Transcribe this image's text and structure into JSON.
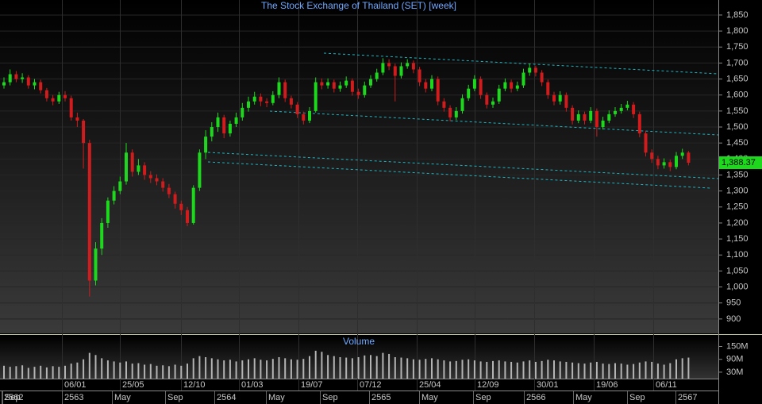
{
  "chart_data": {
    "type": "candlestick",
    "title": "The Stock Exchange of Thailand (SET) [week]",
    "open": [
      1630,
      1640,
      1665,
      1650,
      1655,
      1630,
      1640,
      1615,
      1590,
      1580,
      1600,
      1590,
      1530,
      1520,
      1450,
      1020,
      1120,
      1200,
      1270,
      1300,
      1330,
      1420,
      1360,
      1380,
      1350,
      1340,
      1330,
      1310,
      1290,
      1260,
      1240,
      1200,
      1310,
      1420,
      1470,
      1500,
      1530,
      1480,
      1510,
      1530,
      1560,
      1580,
      1595,
      1580,
      1575,
      1600,
      1640,
      1590,
      1570,
      1540,
      1520,
      1550,
      1640,
      1630,
      1640,
      1620,
      1630,
      1645,
      1610,
      1600,
      1630,
      1650,
      1670,
      1700,
      1690,
      1660,
      1690,
      1700,
      1680,
      1640,
      1620,
      1650,
      1580,
      1560,
      1530,
      1550,
      1590,
      1620,
      1650,
      1600,
      1570,
      1580,
      1620,
      1640,
      1620,
      1630,
      1670,
      1685,
      1670,
      1640,
      1600,
      1580,
      1600,
      1560,
      1520,
      1540,
      1520,
      1550,
      1500,
      1520,
      1540,
      1550,
      1560,
      1570,
      1540,
      1480,
      1420,
      1400,
      1380,
      1390,
      1375,
      1410,
      1420
    ],
    "high": [
      1655,
      1680,
      1675,
      1668,
      1662,
      1650,
      1648,
      1622,
      1600,
      1610,
      1612,
      1598,
      1545,
      1525,
      1460,
      1140,
      1215,
      1280,
      1315,
      1345,
      1450,
      1430,
      1400,
      1390,
      1362,
      1352,
      1340,
      1322,
      1298,
      1270,
      1250,
      1318,
      1430,
      1490,
      1515,
      1545,
      1538,
      1520,
      1545,
      1575,
      1595,
      1610,
      1605,
      1590,
      1612,
      1655,
      1648,
      1598,
      1578,
      1548,
      1562,
      1655,
      1652,
      1652,
      1648,
      1642,
      1658,
      1652,
      1620,
      1642,
      1662,
      1682,
      1715,
      1712,
      1698,
      1702,
      1712,
      1708,
      1688,
      1650,
      1662,
      1658,
      1590,
      1568,
      1562,
      1602,
      1632,
      1662,
      1658,
      1608,
      1592,
      1632,
      1652,
      1648,
      1642,
      1682,
      1698,
      1692,
      1678,
      1648,
      1610,
      1612,
      1608,
      1568,
      1552,
      1548,
      1562,
      1558,
      1532,
      1552,
      1562,
      1572,
      1582,
      1578,
      1548,
      1488,
      1430,
      1410,
      1402,
      1398,
      1422,
      1432,
      1425
    ],
    "low": [
      1620,
      1630,
      1640,
      1638,
      1620,
      1618,
      1605,
      1580,
      1568,
      1572,
      1580,
      1520,
      1500,
      1370,
      970,
      1005,
      1100,
      1185,
      1258,
      1290,
      1320,
      1345,
      1350,
      1335,
      1325,
      1318,
      1298,
      1278,
      1245,
      1225,
      1190,
      1195,
      1300,
      1400,
      1455,
      1485,
      1465,
      1470,
      1500,
      1520,
      1548,
      1570,
      1565,
      1562,
      1568,
      1590,
      1578,
      1558,
      1528,
      1508,
      1512,
      1545,
      1618,
      1620,
      1608,
      1610,
      1622,
      1598,
      1588,
      1592,
      1622,
      1642,
      1662,
      1678,
      1580,
      1652,
      1682,
      1668,
      1628,
      1608,
      1612,
      1568,
      1548,
      1518,
      1522,
      1542,
      1582,
      1612,
      1588,
      1558,
      1560,
      1572,
      1612,
      1608,
      1612,
      1622,
      1660,
      1658,
      1628,
      1588,
      1568,
      1570,
      1548,
      1508,
      1512,
      1508,
      1512,
      1470,
      1492,
      1512,
      1532,
      1542,
      1552,
      1528,
      1468,
      1408,
      1388,
      1368,
      1370,
      1362,
      1368,
      1400,
      1380
    ],
    "close": [
      1640,
      1665,
      1650,
      1655,
      1630,
      1640,
      1615,
      1590,
      1580,
      1600,
      1590,
      1530,
      1520,
      1450,
      1020,
      1120,
      1200,
      1270,
      1300,
      1330,
      1420,
      1360,
      1380,
      1350,
      1340,
      1330,
      1310,
      1290,
      1260,
      1240,
      1200,
      1310,
      1420,
      1470,
      1500,
      1530,
      1480,
      1510,
      1530,
      1560,
      1580,
      1595,
      1580,
      1575,
      1600,
      1640,
      1590,
      1570,
      1540,
      1520,
      1550,
      1640,
      1630,
      1640,
      1620,
      1630,
      1645,
      1610,
      1600,
      1630,
      1650,
      1670,
      1700,
      1690,
      1660,
      1690,
      1700,
      1680,
      1640,
      1620,
      1650,
      1580,
      1560,
      1530,
      1550,
      1590,
      1620,
      1650,
      1600,
      1570,
      1580,
      1620,
      1640,
      1620,
      1630,
      1670,
      1685,
      1670,
      1640,
      1600,
      1580,
      1600,
      1560,
      1520,
      1540,
      1520,
      1550,
      1500,
      1520,
      1540,
      1550,
      1560,
      1570,
      1540,
      1480,
      1420,
      1400,
      1380,
      1390,
      1375,
      1410,
      1420,
      1388.37
    ],
    "up_color": "#1ed81e",
    "down_color": "#d01c1c",
    "last_label": "1,388.37",
    "ylim": [
      855,
      1897
    ],
    "yticks": [
      {
        "value": 1850,
        "label": "1,850"
      },
      {
        "value": 1800,
        "label": "1,800"
      },
      {
        "value": 1750,
        "label": "1,750"
      },
      {
        "value": 1700,
        "label": "1,700"
      },
      {
        "value": 1650,
        "label": "1,650"
      },
      {
        "value": 1600,
        "label": "1,600"
      },
      {
        "value": 1550,
        "label": "1,550"
      },
      {
        "value": 1500,
        "label": "1,500"
      },
      {
        "value": 1450,
        "label": "1,450"
      },
      {
        "value": 1400,
        "label": "1,400"
      },
      {
        "value": 1350,
        "label": "1,350"
      },
      {
        "value": 1300,
        "label": "1,300"
      },
      {
        "value": 1250,
        "label": "1,250"
      },
      {
        "value": 1200,
        "label": "1,200"
      },
      {
        "value": 1150,
        "label": "1,150"
      },
      {
        "value": 1100,
        "label": "1,100"
      },
      {
        "value": 1050,
        "label": "1,050"
      },
      {
        "value": 1000,
        "label": "1,000"
      },
      950,
      900
    ],
    "grid": true,
    "volume": {
      "title": "Volume",
      "color": "#b4b4b4",
      "values": [
        60,
        55,
        58,
        62,
        50,
        55,
        60,
        52,
        58,
        55,
        60,
        70,
        75,
        90,
        120,
        110,
        95,
        85,
        80,
        75,
        80,
        70,
        72,
        65,
        68,
        60,
        62,
        58,
        65,
        60,
        70,
        95,
        105,
        100,
        95,
        90,
        85,
        88,
        80,
        85,
        90,
        95,
        88,
        85,
        92,
        100,
        95,
        90,
        88,
        92,
        105,
        130,
        125,
        110,
        105,
        100,
        98,
        95,
        100,
        108,
        110,
        105,
        120,
        115,
        100,
        98,
        95,
        90,
        88,
        92,
        95,
        90,
        85,
        80,
        82,
        88,
        90,
        85,
        80,
        78,
        82,
        85,
        80,
        78,
        75,
        80,
        85,
        78,
        82,
        88,
        85,
        80,
        78,
        75,
        72,
        70,
        75,
        78,
        70,
        68,
        72,
        70,
        65,
        68,
        75,
        80,
        78,
        70,
        65,
        72,
        90,
        95,
        98
      ],
      "ylim": [
        0,
        200
      ],
      "yticks": [
        {
          "value": 150,
          "label": "150M"
        },
        {
          "value": 90,
          "label": "90M"
        },
        {
          "value": 30,
          "label": "30M"
        }
      ]
    },
    "date_labels": [
      "06/01",
      "25/05",
      "12/10",
      "01/03",
      "19/07",
      "07/12",
      "25/04",
      "12/09",
      "30/01",
      "19/06",
      "06/11"
    ],
    "period_labels": [
      "2562",
      "Sep",
      "2563",
      "May",
      "Sep",
      "2564",
      "May",
      "Sep",
      "2565",
      "May",
      "Sep",
      "2566",
      "May",
      "Sep",
      "2567"
    ]
  }
}
